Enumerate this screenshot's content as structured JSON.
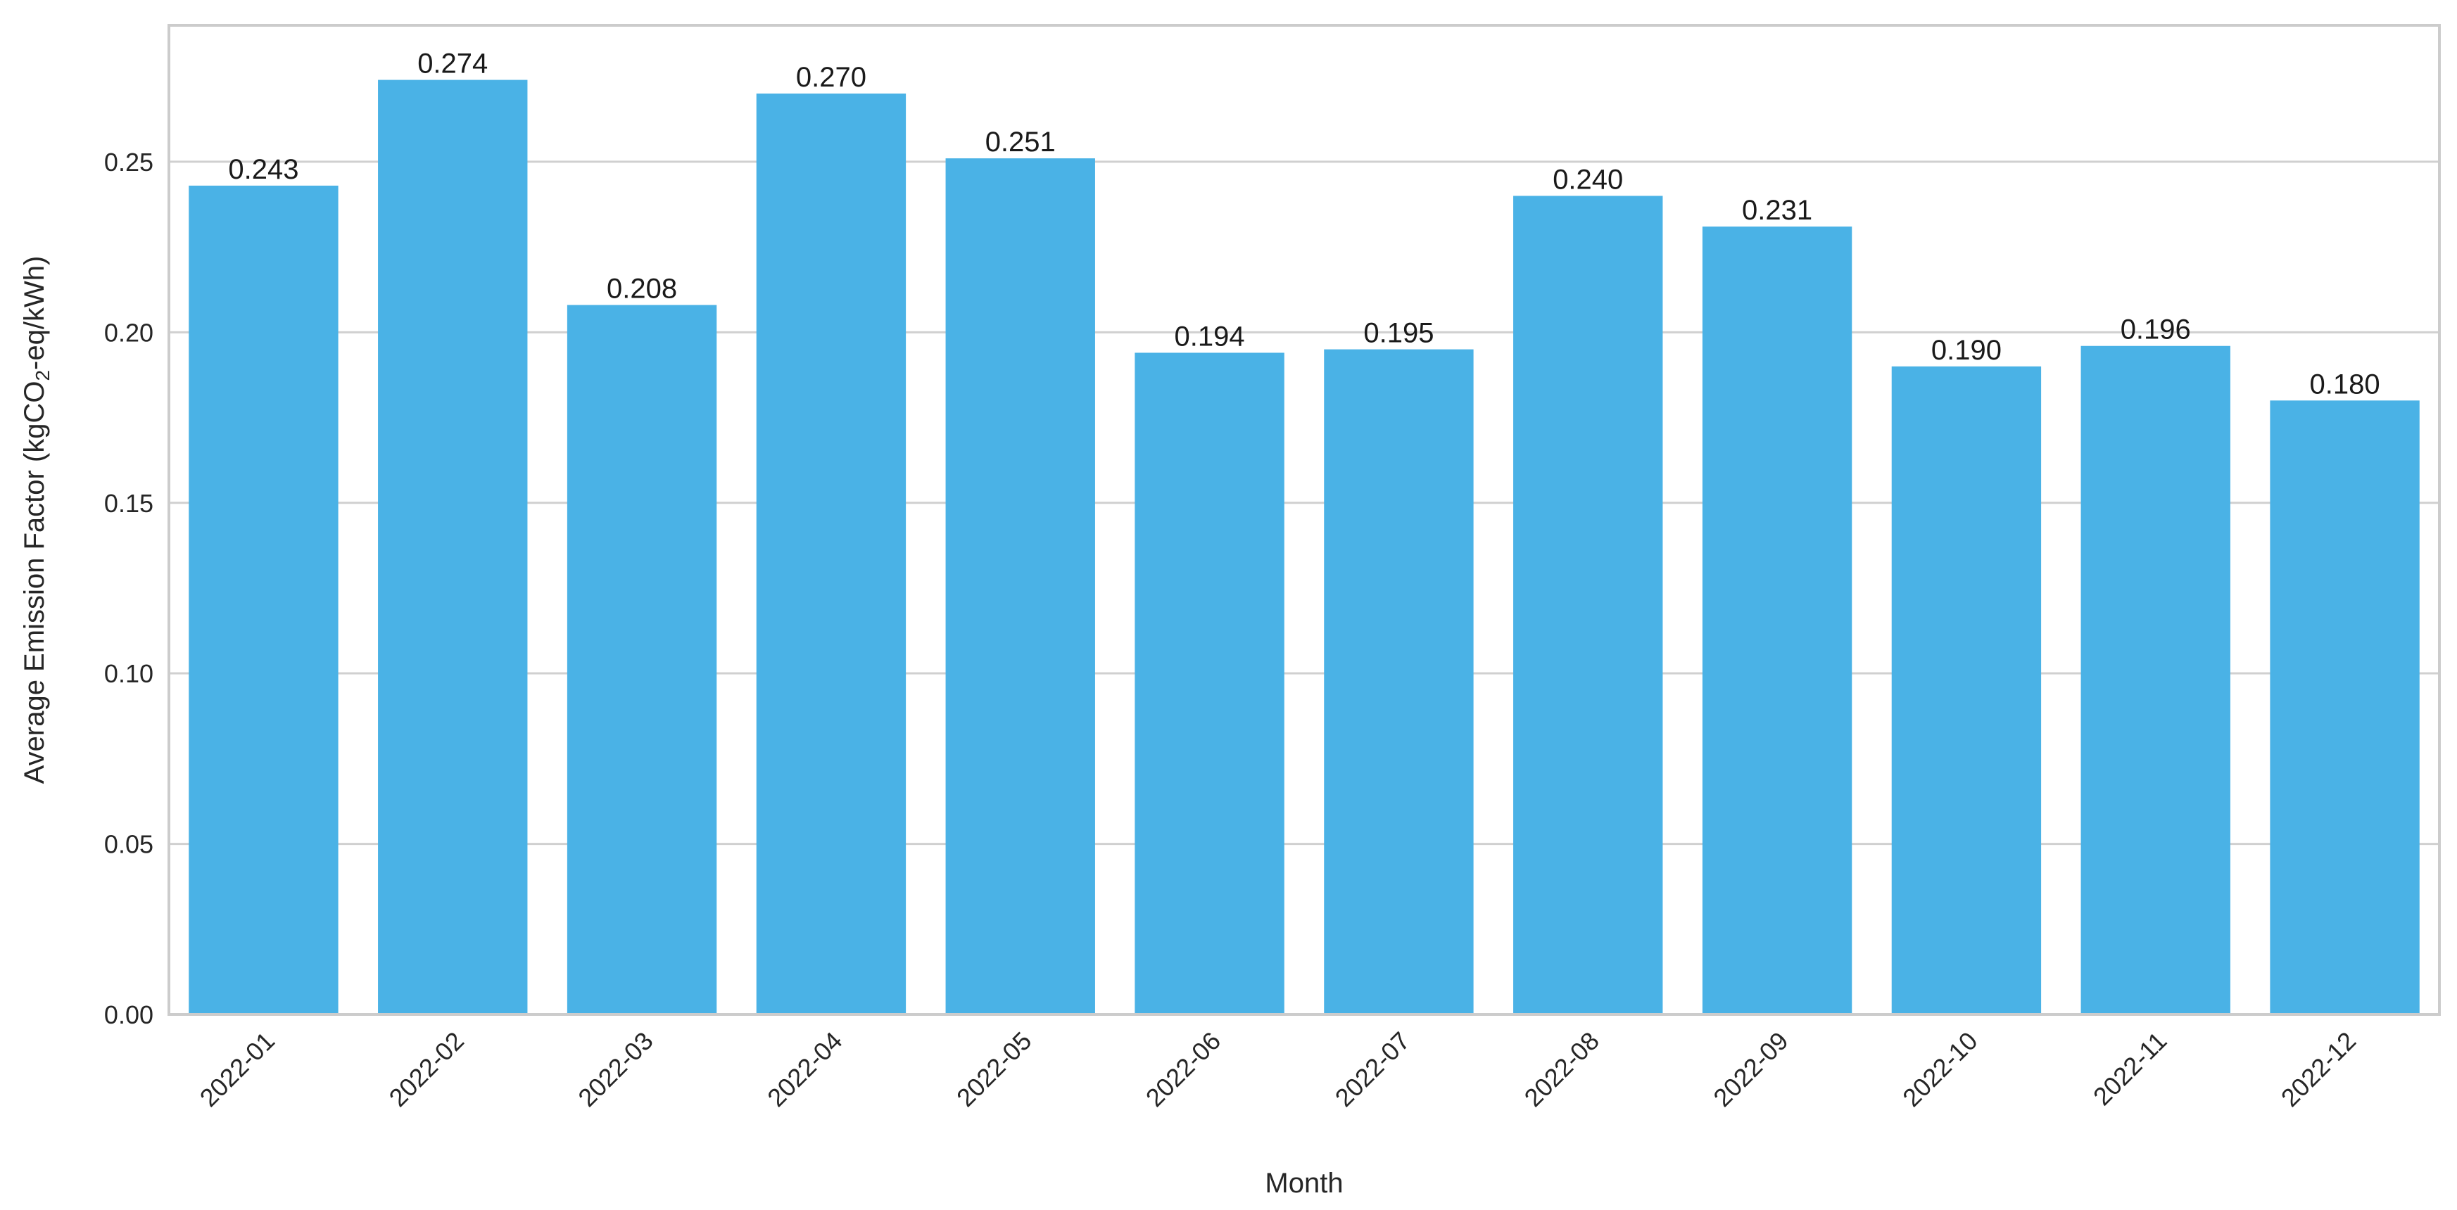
{
  "chart_data": {
    "type": "bar",
    "categories": [
      "2022-01",
      "2022-02",
      "2022-03",
      "2022-04",
      "2022-05",
      "2022-06",
      "2022-07",
      "2022-08",
      "2022-09",
      "2022-10",
      "2022-11",
      "2022-12"
    ],
    "values": [
      0.243,
      0.274,
      0.208,
      0.27,
      0.251,
      0.194,
      0.195,
      0.24,
      0.231,
      0.19,
      0.196,
      0.18
    ],
    "data_labels": [
      "0.243",
      "0.274",
      "0.208",
      "0.270",
      "0.251",
      "0.194",
      "0.195",
      "0.240",
      "0.231",
      "0.190",
      "0.196",
      "0.180"
    ],
    "xlabel": "Month",
    "ylabel": {
      "prefix": "Average Emission Factor (kgCO",
      "subscript": "2",
      "suffix": "-eq/kWh)"
    },
    "ylim": [
      0,
      0.29
    ],
    "yticks": [
      0.0,
      0.05,
      0.1,
      0.15,
      0.2,
      0.25
    ],
    "ytick_labels": [
      "0.00",
      "0.05",
      "0.10",
      "0.15",
      "0.20",
      "0.25"
    ],
    "grid": true,
    "bar_color": "#4ab2e6",
    "grid_color": "#d0d0d0",
    "frame_color": "#cccccc"
  }
}
